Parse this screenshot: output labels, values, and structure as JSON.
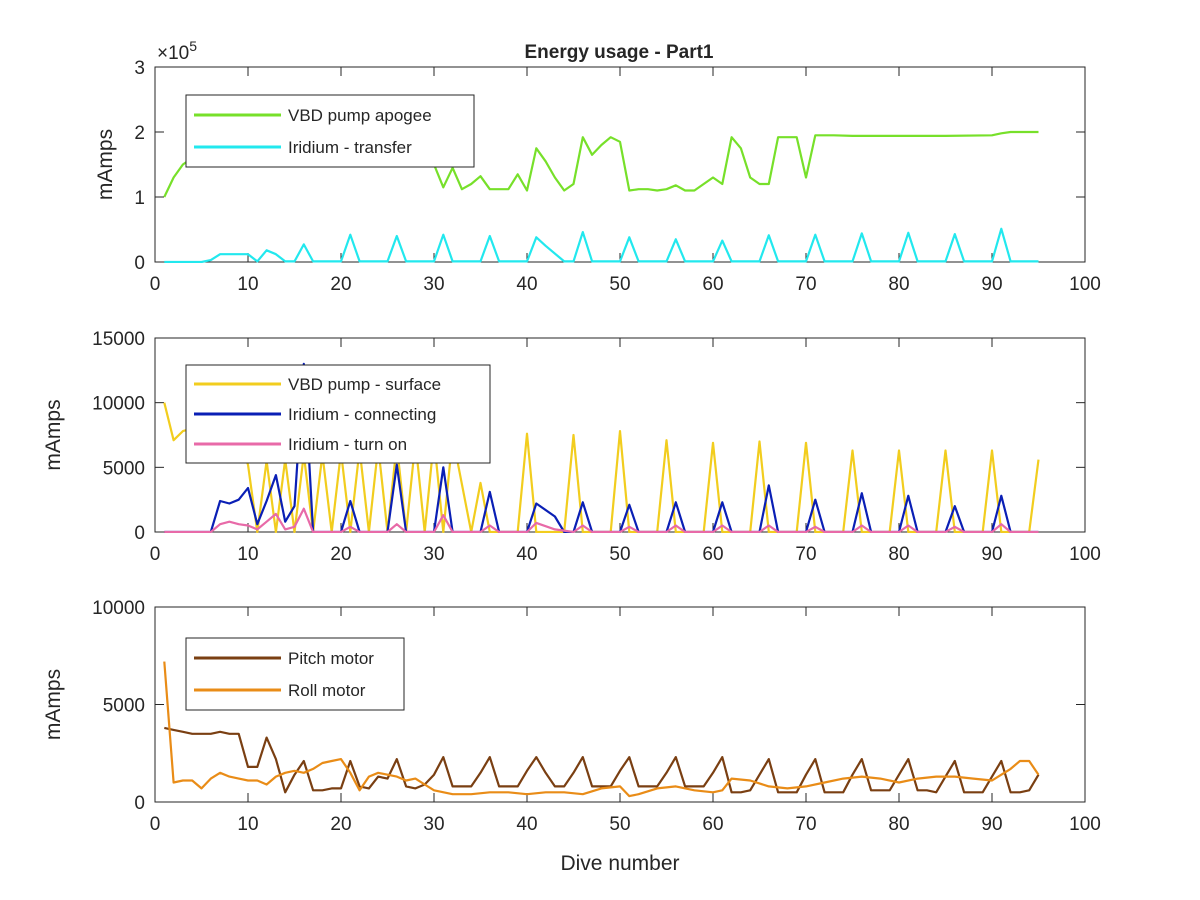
{
  "figure": {
    "title": "Energy usage - Part1"
  },
  "chart_data": [
    {
      "type": "line",
      "title": "Energy usage - Part1",
      "xlabel": "",
      "ylabel": "mAmps",
      "xlim": [
        0,
        100
      ],
      "ylim": [
        0,
        3
      ],
      "y_exponent_label": "×10",
      "y_exponent_power": "5",
      "xticks": [
        0,
        10,
        20,
        30,
        40,
        50,
        60,
        70,
        80,
        90,
        100
      ],
      "yticks": [
        0,
        1,
        2,
        3
      ],
      "grid": false,
      "legend_position": "top-left",
      "series": [
        {
          "name": "VBD pump apogee",
          "color": "#77e02a",
          "x": [
            1,
            2,
            3,
            4,
            5,
            10,
            20,
            29,
            30,
            31,
            32,
            33,
            34,
            35,
            36,
            37,
            38,
            39,
            40,
            41,
            42,
            43,
            44,
            45,
            46,
            47,
            48,
            49,
            50,
            51,
            52,
            53,
            54,
            55,
            56,
            57,
            58,
            59,
            60,
            61,
            62,
            63,
            64,
            65,
            66,
            67,
            68,
            69,
            70,
            71,
            72,
            73,
            75,
            80,
            85,
            90,
            91,
            92,
            95
          ],
          "values": [
            1.0,
            1.3,
            1.5,
            1.6,
            1.7,
            1.7,
            1.7,
            1.7,
            1.5,
            1.15,
            1.45,
            1.12,
            1.2,
            1.32,
            1.12,
            1.12,
            1.12,
            1.35,
            1.1,
            1.75,
            1.55,
            1.3,
            1.1,
            1.2,
            1.92,
            1.65,
            1.8,
            1.92,
            1.85,
            1.1,
            1.12,
            1.12,
            1.1,
            1.12,
            1.18,
            1.1,
            1.1,
            1.2,
            1.3,
            1.2,
            1.92,
            1.75,
            1.3,
            1.2,
            1.2,
            1.92,
            1.92,
            1.92,
            1.3,
            1.95,
            1.95,
            1.95,
            1.94,
            1.94,
            1.94,
            1.95,
            1.98,
            2.0,
            2.0
          ]
        },
        {
          "name": "Iridium - transfer",
          "color": "#22e8ee",
          "x": [
            1,
            5,
            6,
            7,
            8,
            9,
            10,
            11,
            12,
            13,
            14,
            15,
            16,
            17,
            19,
            20,
            21,
            22,
            24,
            25,
            26,
            27,
            29,
            30,
            31,
            32,
            34,
            35,
            36,
            37,
            39,
            40,
            41,
            42,
            44,
            45,
            46,
            47,
            49,
            50,
            51,
            52,
            54,
            55,
            56,
            57,
            59,
            60,
            61,
            62,
            64,
            65,
            66,
            67,
            69,
            70,
            71,
            72,
            74,
            75,
            76,
            77,
            79,
            80,
            81,
            82,
            84,
            85,
            86,
            87,
            89,
            90,
            91,
            92,
            95
          ],
          "values": [
            0,
            0,
            0.03,
            0.12,
            0.12,
            0.12,
            0.12,
            0.01,
            0.18,
            0.12,
            0.01,
            0.01,
            0.27,
            0.01,
            0.01,
            0.01,
            0.42,
            0.01,
            0.01,
            0.01,
            0.4,
            0.01,
            0.01,
            0.01,
            0.42,
            0.01,
            0.01,
            0.01,
            0.4,
            0.01,
            0.01,
            0.01,
            0.38,
            0.25,
            0.01,
            0.01,
            0.46,
            0.01,
            0.01,
            0.01,
            0.38,
            0.01,
            0.01,
            0.01,
            0.35,
            0.01,
            0.01,
            0.01,
            0.33,
            0.01,
            0.01,
            0.01,
            0.41,
            0.01,
            0.01,
            0.01,
            0.42,
            0.01,
            0.01,
            0.01,
            0.44,
            0.01,
            0.01,
            0.01,
            0.45,
            0.01,
            0.01,
            0.01,
            0.43,
            0.01,
            0.01,
            0.01,
            0.51,
            0.01,
            0.01
          ]
        }
      ]
    },
    {
      "type": "line",
      "title": "",
      "xlabel": "",
      "ylabel": "mAmps",
      "xlim": [
        0,
        100
      ],
      "ylim": [
        0,
        15000
      ],
      "xticks": [
        0,
        10,
        20,
        30,
        40,
        50,
        60,
        70,
        80,
        90,
        100
      ],
      "yticks": [
        0,
        5000,
        10000,
        15000
      ],
      "grid": false,
      "legend_position": "top-left",
      "series": [
        {
          "name": "VBD pump - surface",
          "color": "#f2cd1e",
          "x": [
            1,
            2,
            3,
            4,
            5,
            6,
            7,
            8,
            9,
            10,
            11,
            12,
            13,
            14,
            15,
            16,
            17,
            18,
            19,
            20,
            21,
            22,
            23,
            24,
            25,
            26,
            27,
            28,
            29,
            30,
            31,
            32,
            34,
            35,
            36,
            38,
            39,
            40,
            41,
            44,
            45,
            46,
            49,
            50,
            51,
            54,
            55,
            56,
            59,
            60,
            61,
            64,
            65,
            66,
            69,
            70,
            71,
            74,
            75,
            76,
            79,
            80,
            81,
            84,
            85,
            86,
            89,
            90,
            91,
            94,
            95
          ],
          "values": [
            10000,
            7100,
            7800,
            8000,
            8100,
            8100,
            8100,
            8000,
            7200,
            5200,
            0,
            5500,
            0,
            5600,
            0,
            6000,
            0,
            6000,
            0,
            6200,
            0,
            6400,
            0,
            6600,
            0,
            6800,
            0,
            7000,
            0,
            7200,
            0,
            7400,
            0,
            3800,
            0,
            0,
            0,
            7600,
            0,
            0,
            7500,
            0,
            0,
            7800,
            0,
            0,
            7100,
            0,
            0,
            6900,
            0,
            0,
            7000,
            0,
            0,
            6900,
            0,
            0,
            6300,
            0,
            0,
            6300,
            0,
            0,
            6300,
            0,
            0,
            6300,
            0,
            0,
            5600
          ]
        },
        {
          "name": "Iridium - connecting",
          "color": "#0a1fb5",
          "x": [
            1,
            6,
            7,
            8,
            9,
            10,
            11,
            12,
            13,
            14,
            15,
            16,
            17,
            19,
            20,
            21,
            22,
            24,
            25,
            26,
            27,
            29,
            30,
            31,
            32,
            34,
            35,
            36,
            37,
            39,
            40,
            41,
            43,
            44,
            45,
            46,
            47,
            49,
            50,
            51,
            52,
            54,
            55,
            56,
            57,
            59,
            60,
            61,
            62,
            64,
            65,
            66,
            67,
            69,
            70,
            71,
            72,
            74,
            75,
            76,
            77,
            79,
            80,
            81,
            82,
            84,
            85,
            86,
            87,
            89,
            90,
            91,
            92,
            95
          ],
          "values": [
            0,
            0,
            2400,
            2200,
            2500,
            3400,
            600,
            2400,
            4400,
            800,
            2000,
            13000,
            0,
            0,
            0,
            2400,
            0,
            0,
            0,
            5200,
            0,
            0,
            0,
            5000,
            0,
            0,
            0,
            3100,
            0,
            0,
            0,
            2200,
            1200,
            0,
            0,
            2300,
            0,
            0,
            0,
            2100,
            0,
            0,
            0,
            2300,
            0,
            0,
            0,
            2300,
            0,
            0,
            0,
            3600,
            0,
            0,
            0,
            2500,
            0,
            0,
            0,
            3000,
            0,
            0,
            0,
            2800,
            0,
            0,
            0,
            2000,
            0,
            0,
            0,
            2800,
            0,
            0
          ]
        },
        {
          "name": "Iridium - turn on",
          "color": "#e86aa8",
          "x": [
            1,
            6,
            7,
            8,
            9,
            10,
            11,
            12,
            13,
            14,
            15,
            16,
            17,
            20,
            21,
            22,
            25,
            26,
            27,
            30,
            31,
            32,
            35,
            36,
            37,
            40,
            41,
            43,
            45,
            46,
            47,
            50,
            51,
            52,
            55,
            56,
            57,
            60,
            61,
            62,
            65,
            66,
            67,
            70,
            71,
            72,
            75,
            76,
            77,
            80,
            81,
            82,
            85,
            86,
            87,
            90,
            91,
            92,
            95
          ],
          "values": [
            0,
            0,
            600,
            800,
            600,
            500,
            200,
            800,
            1400,
            200,
            400,
            1800,
            0,
            0,
            400,
            0,
            0,
            600,
            0,
            0,
            1300,
            0,
            0,
            500,
            0,
            0,
            700,
            200,
            0,
            500,
            0,
            0,
            400,
            0,
            0,
            500,
            0,
            0,
            500,
            0,
            0,
            500,
            0,
            0,
            400,
            0,
            0,
            500,
            0,
            0,
            500,
            0,
            0,
            400,
            0,
            0,
            600,
            0,
            0
          ]
        }
      ]
    },
    {
      "type": "line",
      "title": "",
      "xlabel": "Dive number",
      "ylabel": "mAmps",
      "xlim": [
        0,
        100
      ],
      "ylim": [
        0,
        10000
      ],
      "xticks": [
        0,
        10,
        20,
        30,
        40,
        50,
        60,
        70,
        80,
        90,
        100
      ],
      "yticks": [
        0,
        5000,
        10000
      ],
      "grid": false,
      "legend_position": "top-left",
      "series": [
        {
          "name": "Pitch motor",
          "color": "#7a3f12",
          "x": [
            1,
            2,
            3,
            4,
            5,
            6,
            7,
            8,
            9,
            10,
            11,
            12,
            13,
            14,
            15,
            16,
            17,
            18,
            19,
            20,
            21,
            22,
            23,
            24,
            25,
            26,
            27,
            28,
            29,
            30,
            31,
            32,
            33,
            34,
            35,
            36,
            37,
            38,
            39,
            40,
            41,
            42,
            43,
            44,
            45,
            46,
            47,
            48,
            49,
            50,
            51,
            52,
            53,
            54,
            55,
            56,
            57,
            58,
            59,
            60,
            61,
            62,
            63,
            64,
            65,
            66,
            67,
            68,
            69,
            70,
            71,
            72,
            73,
            74,
            75,
            76,
            77,
            78,
            79,
            80,
            81,
            82,
            83,
            84,
            85,
            86,
            87,
            88,
            89,
            90,
            91,
            92,
            93,
            94,
            95
          ],
          "values": [
            3800,
            3700,
            3600,
            3500,
            3500,
            3500,
            3600,
            3500,
            3500,
            1800,
            1800,
            3300,
            2200,
            500,
            1400,
            2100,
            600,
            600,
            700,
            700,
            2100,
            800,
            700,
            1300,
            1200,
            2200,
            800,
            700,
            900,
            1400,
            2300,
            800,
            800,
            800,
            1500,
            2300,
            800,
            800,
            800,
            1600,
            2300,
            1500,
            800,
            800,
            1500,
            2300,
            800,
            800,
            800,
            1600,
            2300,
            800,
            800,
            800,
            1500,
            2300,
            800,
            800,
            800,
            1500,
            2300,
            500,
            500,
            600,
            1400,
            2200,
            500,
            500,
            500,
            1400,
            2200,
            500,
            500,
            500,
            1400,
            2200,
            600,
            600,
            600,
            1400,
            2200,
            600,
            600,
            500,
            1300,
            2100,
            500,
            500,
            500,
            1300,
            2100,
            500,
            500,
            600,
            1400
          ]
        },
        {
          "name": "Roll motor",
          "color": "#e98c17",
          "x": [
            1,
            2,
            3,
            4,
            5,
            6,
            7,
            8,
            9,
            10,
            11,
            12,
            13,
            14,
            15,
            16,
            17,
            18,
            19,
            20,
            21,
            22,
            23,
            24,
            25,
            26,
            27,
            28,
            29,
            30,
            32,
            34,
            36,
            38,
            40,
            42,
            44,
            46,
            48,
            50,
            51,
            52,
            54,
            56,
            58,
            60,
            61,
            62,
            64,
            66,
            68,
            70,
            72,
            74,
            76,
            78,
            80,
            82,
            84,
            86,
            88,
            90,
            91,
            92,
            93,
            94,
            95
          ],
          "values": [
            7200,
            1000,
            1100,
            1100,
            700,
            1200,
            1500,
            1300,
            1200,
            1100,
            1100,
            900,
            1300,
            1500,
            1600,
            1500,
            1700,
            2000,
            2100,
            2200,
            1500,
            600,
            1300,
            1500,
            1400,
            1300,
            1100,
            1200,
            900,
            600,
            400,
            400,
            500,
            500,
            400,
            500,
            500,
            400,
            700,
            800,
            300,
            400,
            700,
            800,
            600,
            500,
            600,
            1200,
            1100,
            800,
            700,
            800,
            1000,
            1200,
            1300,
            1200,
            1000,
            1200,
            1300,
            1300,
            1200,
            1100,
            1400,
            1700,
            2100,
            2100,
            1400
          ]
        }
      ]
    }
  ]
}
